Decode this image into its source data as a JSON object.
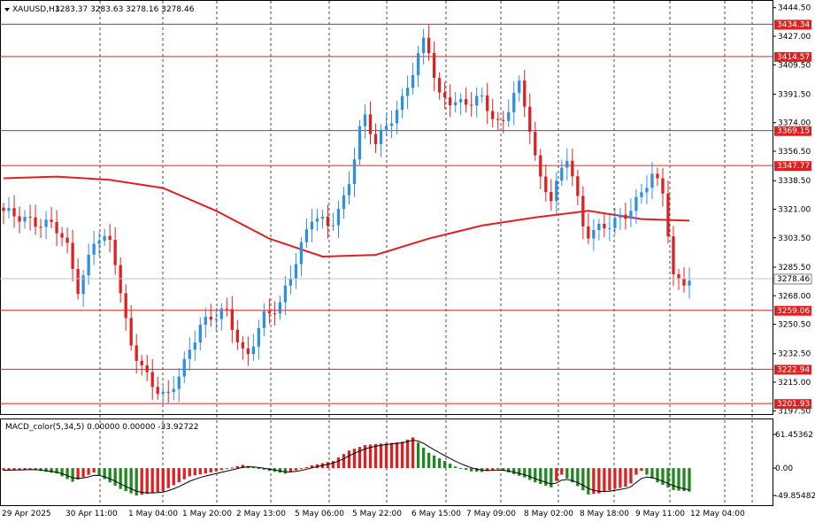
{
  "colors": {
    "background": "#ffffff",
    "bull": "#2f8fe6",
    "bear": "#e02020",
    "level_line": "#e02020",
    "ma_line": "#e02020",
    "macd_pos": "#e02020",
    "macd_neg": "#1f8a1f",
    "signal_line": "#000000",
    "grid": "#000000",
    "text": "#000000"
  },
  "header": {
    "symbol": "XAUUSD,H1",
    "ohlc": "3283.37 3283.63 3278.16 3278.46",
    "dropdown_icon": "triangle-down-icon"
  },
  "indicator": {
    "title": "MACD_color(5,34,5) 0.00000 0.00000 -33.92722",
    "scale_labels": [
      "61.45362",
      "0.00",
      "-49.85482"
    ],
    "scale_values": [
      61.45362,
      0,
      -49.85482
    ]
  },
  "price_axis": {
    "labels": [
      "3444.50",
      "3427.00",
      "3409.50",
      "3391.50",
      "3374.00",
      "3356.50",
      "3338.50",
      "3321.00",
      "3303.50",
      "3285.50",
      "3268.00",
      "3250.50",
      "3232.50",
      "3215.00",
      "3197.50"
    ],
    "values": [
      3444.5,
      3427.0,
      3409.5,
      3391.5,
      3374.0,
      3356.5,
      3338.5,
      3321.0,
      3303.5,
      3285.5,
      3268.0,
      3250.5,
      3232.5,
      3215.0,
      3197.5
    ]
  },
  "levels": [
    {
      "label": "3434.34",
      "value": 3434.34
    },
    {
      "label": "3414.57",
      "value": 3414.57
    },
    {
      "label": "3369.15",
      "value": 3369.15
    },
    {
      "label": "3347.77",
      "value": 3347.77
    },
    {
      "label": "3259.06",
      "value": 3259.06
    },
    {
      "label": "3222.94",
      "value": 3222.94
    },
    {
      "label": "3201.93",
      "value": 3201.93
    }
  ],
  "current_price": {
    "label": "3278.46",
    "value": 3278.46
  },
  "time_axis": {
    "labels": [
      "29 Apr 2025",
      "30 Apr 11:00",
      "1 May 04:00",
      "1 May 20:00",
      "2 May 13:00",
      "5 May 06:00",
      "5 May 22:00",
      "6 May 15:00",
      "7 May 09:00",
      "8 May 02:00",
      "8 May 18:00",
      "9 May 11:00",
      "12 May 04:00"
    ]
  },
  "chart_data": {
    "type": "candlestick",
    "title": "XAUUSD,H1",
    "ylim": [
      3195.5,
      3446.5
    ],
    "x_count": 130,
    "moving_average": {
      "x": [
        0,
        10,
        20,
        30,
        40,
        50,
        60,
        70,
        80,
        90,
        100,
        110,
        120,
        129
      ],
      "values": [
        3340,
        3341,
        3339,
        3334,
        3320,
        3303,
        3292,
        3293,
        3303,
        3311,
        3316,
        3320,
        3315,
        3314
      ]
    },
    "macd": {
      "ylim": [
        -49.85482,
        61.45362
      ],
      "key_x": [
        0,
        5,
        10,
        13,
        17,
        22,
        25,
        30,
        35,
        40,
        45,
        50,
        53,
        55,
        58,
        62,
        65,
        68,
        70,
        73,
        75,
        77,
        80,
        85,
        88,
        90,
        93,
        95,
        98,
        100,
        103,
        105,
        108,
        110,
        112,
        115,
        117,
        118,
        119,
        120,
        123,
        126,
        129
      ],
      "key_v": [
        -4,
        -2,
        -10,
        -25,
        -8,
        -38,
        -50,
        -42,
        -15,
        -6,
        6,
        -5,
        -10,
        -4,
        5,
        13,
        32,
        42,
        44,
        46,
        48,
        56,
        28,
        3,
        -6,
        -7,
        -2,
        -8,
        -17,
        -26,
        -35,
        -12,
        -33,
        -48,
        -46,
        -38,
        -34,
        -28,
        -12,
        -5,
        -26,
        -40,
        -43
      ]
    }
  }
}
